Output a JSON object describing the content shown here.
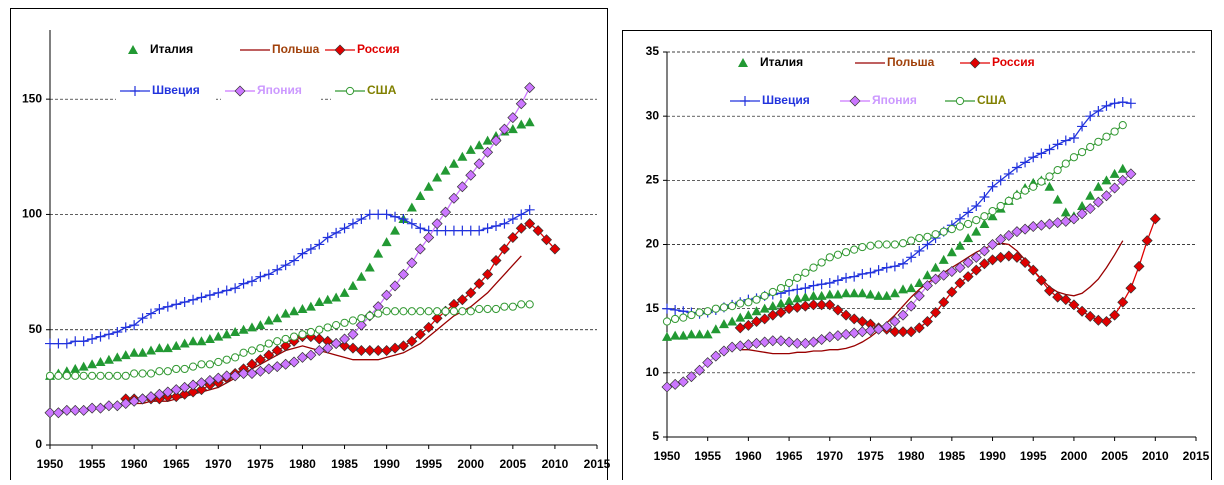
{
  "chart_data": [
    {
      "type": "line",
      "x": [
        1950,
        1951,
        1952,
        1953,
        1954,
        1955,
        1956,
        1957,
        1958,
        1959,
        1960,
        1961,
        1962,
        1963,
        1964,
        1965,
        1966,
        1967,
        1968,
        1969,
        1970,
        1971,
        1972,
        1973,
        1974,
        1975,
        1976,
        1977,
        1978,
        1979,
        1980,
        1981,
        1982,
        1983,
        1984,
        1985,
        1986,
        1987,
        1988,
        1989,
        1990,
        1991,
        1992,
        1993,
        1994,
        1995,
        1996,
        1997,
        1998,
        1999,
        2000,
        2001,
        2002,
        2003,
        2004,
        2005,
        2006,
        2007,
        2008,
        2009,
        2010
      ],
      "xlim": [
        1950,
        2015
      ],
      "xticks": [
        1950,
        1955,
        1960,
        1965,
        1970,
        1975,
        1980,
        1985,
        1990,
        1995,
        2000,
        2005,
        2010,
        2015
      ],
      "ylim": [
        0,
        180
      ],
      "yticks": [
        0,
        50,
        100,
        150
      ],
      "grid": true,
      "series": [
        {
          "name": "Италия",
          "color": "#229933",
          "label_color": "#000000",
          "marker": "triangle",
          "line": false,
          "values": [
            30,
            31,
            32,
            33,
            34,
            35,
            36,
            37,
            38,
            39,
            40,
            40,
            41,
            42,
            42,
            43,
            44,
            45,
            45,
            46,
            47,
            48,
            49,
            50,
            51,
            52,
            54,
            55,
            57,
            58,
            59,
            60,
            62,
            63,
            64,
            66,
            69,
            73,
            77,
            83,
            88,
            93,
            98,
            103,
            108,
            112,
            116,
            119,
            122,
            125,
            128,
            130,
            132,
            134,
            136,
            137,
            139,
            140,
            null,
            null,
            null
          ]
        },
        {
          "name": "Польша",
          "color": "#990000",
          "label_color": "#a0400a",
          "marker": "none",
          "line": true,
          "values": [
            null,
            null,
            null,
            null,
            null,
            null,
            null,
            null,
            null,
            18,
            18,
            18,
            19,
            19,
            19,
            20,
            21,
            22,
            23,
            24,
            25,
            27,
            29,
            31,
            33,
            35,
            37,
            39,
            41,
            42,
            43,
            42,
            41,
            40,
            39,
            38,
            37,
            37,
            37,
            37,
            38,
            39,
            40,
            42,
            44,
            47,
            50,
            53,
            56,
            58,
            60,
            63,
            66,
            70,
            74,
            78,
            82,
            null,
            null,
            null,
            null
          ]
        },
        {
          "name": "Россия",
          "color": "#e00000",
          "label_color": "#e00000",
          "marker": "diamond",
          "line": true,
          "values": [
            null,
            null,
            null,
            null,
            null,
            null,
            null,
            null,
            null,
            20,
            20,
            20,
            20,
            20,
            21,
            21,
            22,
            23,
            24,
            26,
            27,
            29,
            31,
            33,
            35,
            37,
            39,
            41,
            43,
            45,
            47,
            47,
            46,
            45,
            44,
            43,
            42,
            41,
            41,
            41,
            41,
            42,
            43,
            45,
            48,
            51,
            55,
            58,
            61,
            63,
            66,
            70,
            74,
            80,
            85,
            90,
            94,
            96,
            93,
            89,
            85
          ]
        },
        {
          "name": "Швеция",
          "color": "#2233dd",
          "label_color": "#2233dd",
          "marker": "plus",
          "line": true,
          "values": [
            44,
            44,
            44,
            45,
            45,
            46,
            47,
            48,
            49,
            51,
            52,
            55,
            57,
            59,
            60,
            61,
            62,
            63,
            64,
            65,
            66,
            67,
            68,
            70,
            71,
            73,
            74,
            76,
            78,
            80,
            83,
            85,
            87,
            90,
            92,
            94,
            96,
            98,
            100,
            100,
            100,
            99,
            98,
            96,
            94,
            93,
            93,
            93,
            93,
            93,
            93,
            93,
            94,
            95,
            96,
            98,
            100,
            102,
            null,
            null,
            null
          ]
        },
        {
          "name": "Япония",
          "color": "#cc77ff",
          "label_color": "#cc99ff",
          "marker": "diamond",
          "line": true,
          "values": [
            14,
            14,
            15,
            15,
            15,
            16,
            16,
            17,
            17,
            18,
            19,
            20,
            21,
            22,
            23,
            24,
            25,
            26,
            27,
            28,
            29,
            30,
            30,
            31,
            31,
            32,
            33,
            34,
            35,
            36,
            38,
            39,
            41,
            42,
            44,
            46,
            48,
            52,
            56,
            60,
            65,
            69,
            74,
            79,
            85,
            90,
            96,
            101,
            107,
            112,
            117,
            122,
            127,
            132,
            137,
            142,
            148,
            155,
            null,
            null,
            null
          ]
        },
        {
          "name": "США",
          "color": "#339933",
          "label_color": "#808000",
          "marker": "circle",
          "line": true,
          "values": [
            30,
            30,
            30,
            30,
            30,
            30,
            30,
            30,
            30,
            30,
            31,
            31,
            31,
            32,
            32,
            33,
            33,
            34,
            35,
            35,
            36,
            37,
            38,
            40,
            41,
            42,
            44,
            45,
            46,
            47,
            48,
            49,
            50,
            51,
            52,
            53,
            54,
            55,
            56,
            57,
            58,
            58,
            58,
            58,
            58,
            58,
            58,
            58,
            58,
            58,
            58,
            59,
            59,
            59,
            60,
            60,
            61,
            61,
            null,
            null,
            null
          ]
        }
      ]
    },
    {
      "type": "line",
      "x": [
        1950,
        1951,
        1952,
        1953,
        1954,
        1955,
        1956,
        1957,
        1958,
        1959,
        1960,
        1961,
        1962,
        1963,
        1964,
        1965,
        1966,
        1967,
        1968,
        1969,
        1970,
        1971,
        1972,
        1973,
        1974,
        1975,
        1976,
        1977,
        1978,
        1979,
        1980,
        1981,
        1982,
        1983,
        1984,
        1985,
        1986,
        1987,
        1988,
        1989,
        1990,
        1991,
        1992,
        1993,
        1994,
        1995,
        1996,
        1997,
        1998,
        1999,
        2000,
        2001,
        2002,
        2003,
        2004,
        2005,
        2006,
        2007,
        2008,
        2009,
        2010
      ],
      "xlim": [
        1950,
        2015
      ],
      "xticks": [
        1950,
        1955,
        1960,
        1965,
        1970,
        1975,
        1980,
        1985,
        1990,
        1995,
        2000,
        2005,
        2010,
        2015
      ],
      "ylim": [
        5,
        35
      ],
      "yticks": [
        5,
        10,
        15,
        20,
        25,
        30,
        35
      ],
      "grid": true,
      "series": [
        {
          "name": "Италия",
          "color": "#229933",
          "label_color": "#000000",
          "marker": "triangle",
          "line": false,
          "values": [
            12.8,
            12.9,
            12.9,
            13,
            13,
            13,
            13.4,
            13.8,
            14,
            14.3,
            14.5,
            14.8,
            15,
            15.2,
            15.4,
            15.6,
            15.8,
            15.9,
            16,
            16,
            16.1,
            16.1,
            16.2,
            16.2,
            16.2,
            16.1,
            16,
            16,
            16.2,
            16.5,
            16.6,
            17,
            17.6,
            18.2,
            18.8,
            19.4,
            19.9,
            20.5,
            21,
            21.6,
            22.2,
            22.8,
            23.4,
            23.9,
            24.4,
            24.8,
            25,
            24.5,
            23.5,
            22.5,
            22.2,
            23,
            23.8,
            24.5,
            25,
            25.5,
            25.9,
            null,
            null,
            null,
            null
          ]
        },
        {
          "name": "Польша",
          "color": "#990000",
          "label_color": "#a0400a",
          "marker": "none",
          "line": true,
          "values": [
            null,
            null,
            null,
            null,
            null,
            null,
            null,
            null,
            null,
            11.8,
            11.8,
            11.7,
            11.6,
            11.5,
            11.5,
            11.5,
            11.6,
            11.6,
            11.7,
            11.7,
            11.8,
            11.8,
            11.9,
            12.1,
            12.4,
            12.8,
            13.3,
            13.9,
            14.5,
            15.2,
            15.9,
            16.5,
            17,
            17.4,
            17.8,
            18.2,
            18.6,
            19,
            19.4,
            19.7,
            19.9,
            20.1,
            20,
            19.5,
            18.8,
            18,
            17.3,
            16.7,
            16.3,
            16.1,
            16,
            16.2,
            16.7,
            17.3,
            18.2,
            19.2,
            20.3,
            null,
            null,
            null,
            null
          ]
        },
        {
          "name": "Россия",
          "color": "#e00000",
          "label_color": "#e00000",
          "marker": "diamond",
          "line": true,
          "values": [
            null,
            null,
            null,
            null,
            null,
            null,
            null,
            null,
            null,
            13.5,
            13.7,
            14,
            14.2,
            14.5,
            14.7,
            15,
            15.1,
            15.2,
            15.3,
            15.3,
            15.3,
            14.9,
            14.5,
            14.2,
            14,
            13.8,
            13.5,
            13.4,
            13.2,
            13.2,
            13.2,
            13.5,
            14,
            14.7,
            15.5,
            16.3,
            17,
            17.5,
            18,
            18.5,
            18.8,
            19,
            19.1,
            19,
            18.6,
            18,
            17.2,
            16.4,
            15.9,
            15.7,
            15.3,
            14.8,
            14.4,
            14.1,
            14,
            14.5,
            15.5,
            16.6,
            18.3,
            20.3,
            22
          ]
        },
        {
          "name": "Швеция",
          "color": "#2233dd",
          "label_color": "#2233dd",
          "marker": "plus",
          "line": true,
          "values": [
            15,
            14.9,
            14.8,
            14.7,
            14.6,
            14.7,
            14.9,
            15.1,
            15.3,
            15.5,
            15.7,
            15.8,
            16,
            16.1,
            16.2,
            16.4,
            16.5,
            16.6,
            16.8,
            16.9,
            17,
            17.2,
            17.4,
            17.5,
            17.7,
            17.8,
            18,
            18.2,
            18.3,
            18.5,
            19,
            19.5,
            20,
            20.5,
            21,
            21.5,
            22,
            22.5,
            23,
            23.7,
            24.5,
            25,
            25.5,
            26,
            26.4,
            26.8,
            27.1,
            27.4,
            27.8,
            28.1,
            28.3,
            29.2,
            30,
            30.4,
            30.8,
            31,
            31.1,
            31,
            null,
            null,
            null
          ]
        },
        {
          "name": "Япония",
          "color": "#cc77ff",
          "label_color": "#cc99ff",
          "marker": "diamond",
          "line": true,
          "values": [
            8.9,
            9.1,
            9.3,
            9.7,
            10.2,
            10.8,
            11.3,
            11.7,
            12,
            12.1,
            12.2,
            12.3,
            12.4,
            12.5,
            12.5,
            12.4,
            12.3,
            12.3,
            12.4,
            12.6,
            12.8,
            12.9,
            13,
            13.1,
            13.2,
            13.3,
            13.4,
            13.6,
            14,
            14.5,
            15.2,
            16,
            16.8,
            17.3,
            17.6,
            17.9,
            18.2,
            18.6,
            19,
            19.5,
            20,
            20.4,
            20.7,
            21,
            21.2,
            21.4,
            21.5,
            21.6,
            21.7,
            21.8,
            22,
            22.4,
            22.8,
            23.3,
            23.8,
            24.4,
            25,
            25.5,
            null,
            null,
            null
          ]
        },
        {
          "name": "США",
          "color": "#339933",
          "label_color": "#808000",
          "marker": "circle",
          "line": true,
          "values": [
            14,
            14.2,
            14.3,
            14.5,
            14.7,
            14.8,
            15,
            15.1,
            15.2,
            15.4,
            15.5,
            15.7,
            16,
            16.3,
            16.6,
            17,
            17.4,
            17.8,
            18.2,
            18.6,
            19,
            19.2,
            19.4,
            19.6,
            19.8,
            19.9,
            20,
            20,
            20,
            20.1,
            20.3,
            20.5,
            20.6,
            20.8,
            21,
            21.2,
            21.4,
            21.6,
            21.9,
            22.2,
            22.6,
            23,
            23.4,
            23.8,
            24.2,
            24.5,
            24.9,
            25.3,
            25.8,
            26.3,
            26.8,
            27.2,
            27.6,
            28,
            28.4,
            28.8,
            29.3,
            null,
            null,
            null,
            null
          ]
        }
      ]
    }
  ]
}
